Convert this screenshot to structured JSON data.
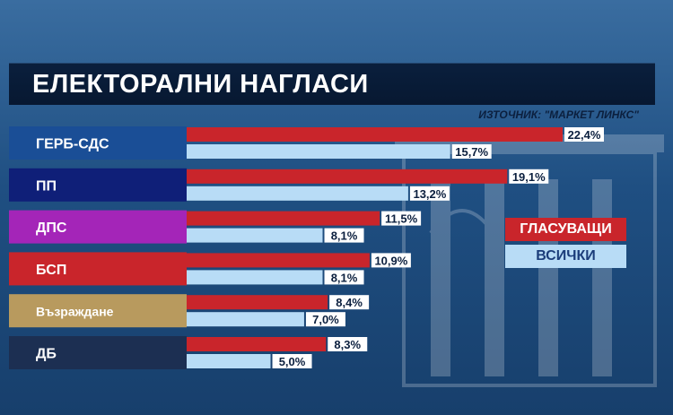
{
  "header": {
    "title": "ЕЛЕКТОРАЛНИ НАГЛАСИ",
    "source": "ИЗТОЧНИК: \"МАРКЕТ ЛИНКС\""
  },
  "legend": {
    "voters": "ГЛАСУВАЩИ",
    "all": "ВСИЧКИ"
  },
  "colors": {
    "voters": "#c9252b",
    "all": "#b8dcf6"
  },
  "chart_data": {
    "type": "bar",
    "title": "ЕЛЕКТОРАЛНИ НАГЛАСИ",
    "categories": [
      "ГЕРБ-СДС",
      "ПП",
      "ДПС",
      "БСП",
      "Възраждане",
      "ДБ"
    ],
    "category_colors": [
      "#1a4e96",
      "#0f1f78",
      "#a425b8",
      "#c9252b",
      "#b89a5e",
      "#1c2f52"
    ],
    "series": [
      {
        "name": "ГЛАСУВАЩИ",
        "values": [
          22.4,
          19.1,
          11.5,
          10.9,
          8.4,
          8.3
        ],
        "labels": [
          "22,4%",
          "19,1%",
          "11,5%",
          "10,9%",
          "8,4%",
          "8,3%"
        ]
      },
      {
        "name": "ВСИЧКИ",
        "values": [
          15.7,
          13.2,
          8.1,
          8.1,
          7.0,
          5.0
        ],
        "labels": [
          "15,7%",
          "13,2%",
          "8,1%",
          "8,1%",
          "7,0%",
          "5,0%"
        ]
      }
    ],
    "xlim": [
      0,
      25
    ],
    "legend_position": "right"
  }
}
